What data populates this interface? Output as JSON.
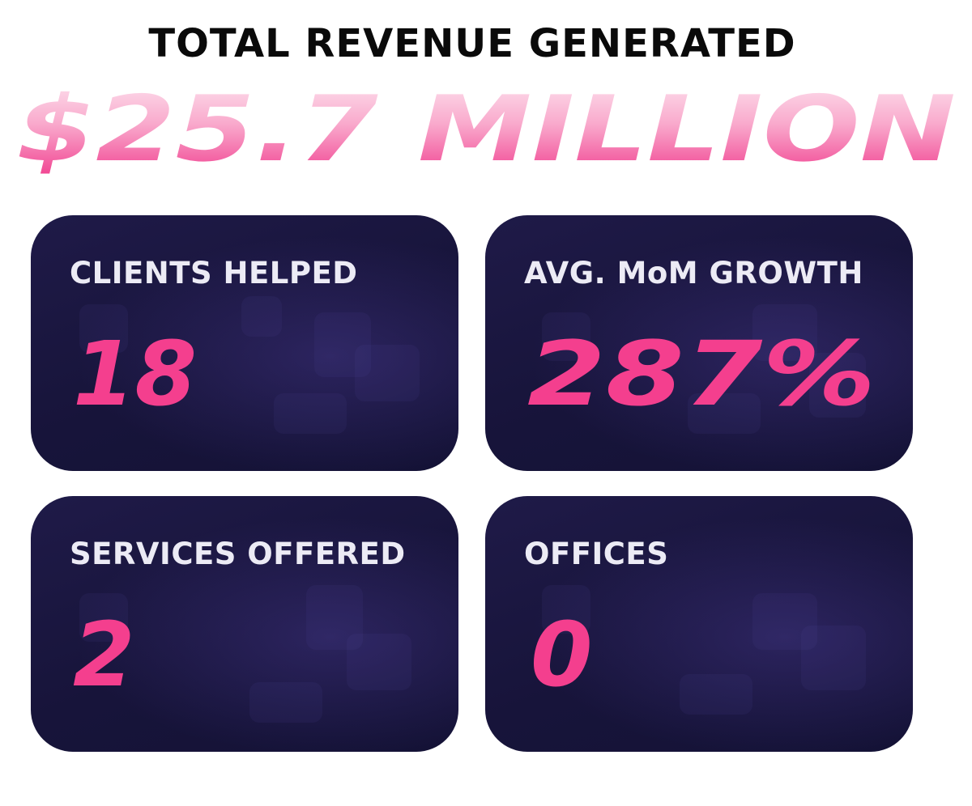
{
  "headline": "TOTAL REVENUE GENERATED",
  "hero_value": "$25.7 MILLION",
  "colors": {
    "accent_pink": "#f43f8e",
    "hero_pink_light": "#fbd0e3",
    "card_bg": "#1a1640",
    "label_text": "#ecebf5"
  },
  "stats": [
    {
      "label": "CLIENTS HELPED",
      "value": "18"
    },
    {
      "label": "AVG. MoM GROWTH",
      "value": "287%"
    },
    {
      "label": "SERVICES OFFERED",
      "value": "2"
    },
    {
      "label": "OFFICES",
      "value": "0"
    }
  ]
}
